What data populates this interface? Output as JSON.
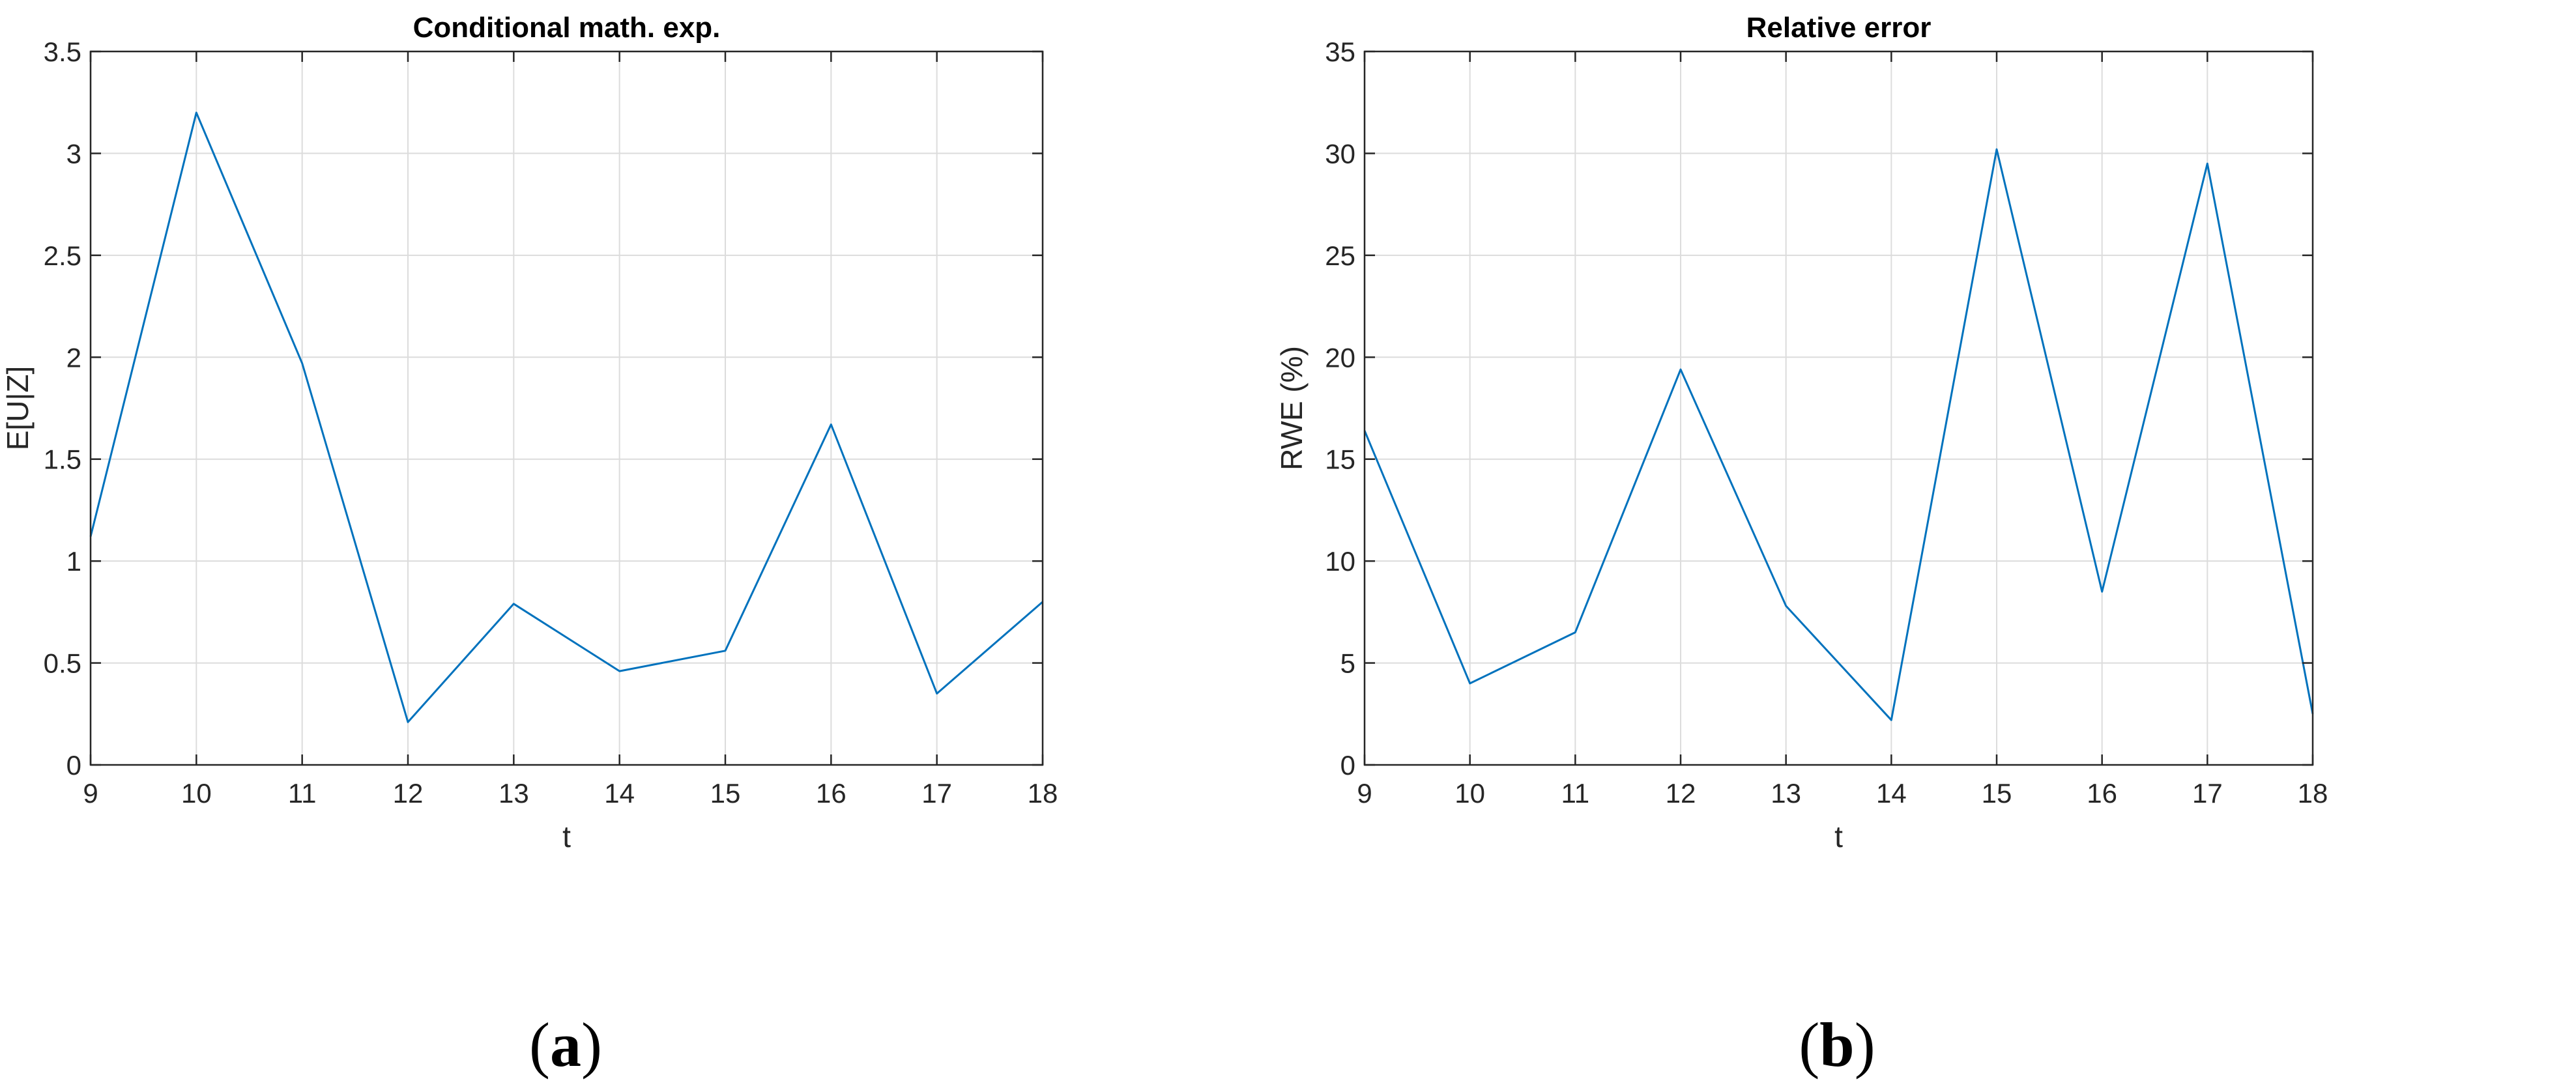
{
  "chart_data": [
    {
      "type": "line",
      "title": "Conditional math. exp.",
      "xlabel": "t",
      "ylabel": "E[U|Z]",
      "xlim": [
        9,
        18
      ],
      "ylim": [
        0,
        3.5
      ],
      "xticks": [
        9,
        10,
        11,
        12,
        13,
        14,
        15,
        16,
        17,
        18
      ],
      "yticks": [
        0,
        0.5,
        1,
        1.5,
        2,
        2.5,
        3,
        3.5
      ],
      "xtick_labels": [
        "9",
        "10",
        "11",
        "12",
        "13",
        "14",
        "15",
        "16",
        "17",
        "18"
      ],
      "ytick_labels": [
        "0",
        "0.5",
        "1",
        "1.5",
        "2",
        "2.5",
        "3",
        "3.5"
      ],
      "grid": true,
      "line_color": "#0072BD",
      "series": [
        {
          "x": [
            9,
            10,
            11,
            12,
            13,
            14,
            15,
            16,
            17,
            18
          ],
          "values": [
            1.12,
            3.2,
            1.97,
            0.21,
            0.79,
            0.46,
            0.56,
            1.67,
            0.35,
            0.8
          ]
        }
      ],
      "caption": {
        "open": "(",
        "letter": "a",
        "close": ")"
      }
    },
    {
      "type": "line",
      "title": "Relative error",
      "xlabel": "t",
      "ylabel": "RWE (%)",
      "xlim": [
        9,
        18
      ],
      "ylim": [
        0,
        35
      ],
      "xticks": [
        9,
        10,
        11,
        12,
        13,
        14,
        15,
        16,
        17,
        18
      ],
      "yticks": [
        0,
        5,
        10,
        15,
        20,
        25,
        30,
        35
      ],
      "xtick_labels": [
        "9",
        "10",
        "11",
        "12",
        "13",
        "14",
        "15",
        "16",
        "17",
        "18"
      ],
      "ytick_labels": [
        "0",
        "5",
        "10",
        "15",
        "20",
        "25",
        "30",
        "35"
      ],
      "grid": true,
      "line_color": "#0072BD",
      "series": [
        {
          "x": [
            9,
            10,
            11,
            12,
            13,
            14,
            15,
            16,
            17,
            18
          ],
          "values": [
            16.4,
            4.0,
            6.5,
            19.4,
            7.8,
            2.2,
            30.2,
            8.5,
            29.5,
            2.5
          ]
        }
      ],
      "caption": {
        "open": "(",
        "letter": "b",
        "close": ")"
      }
    }
  ]
}
